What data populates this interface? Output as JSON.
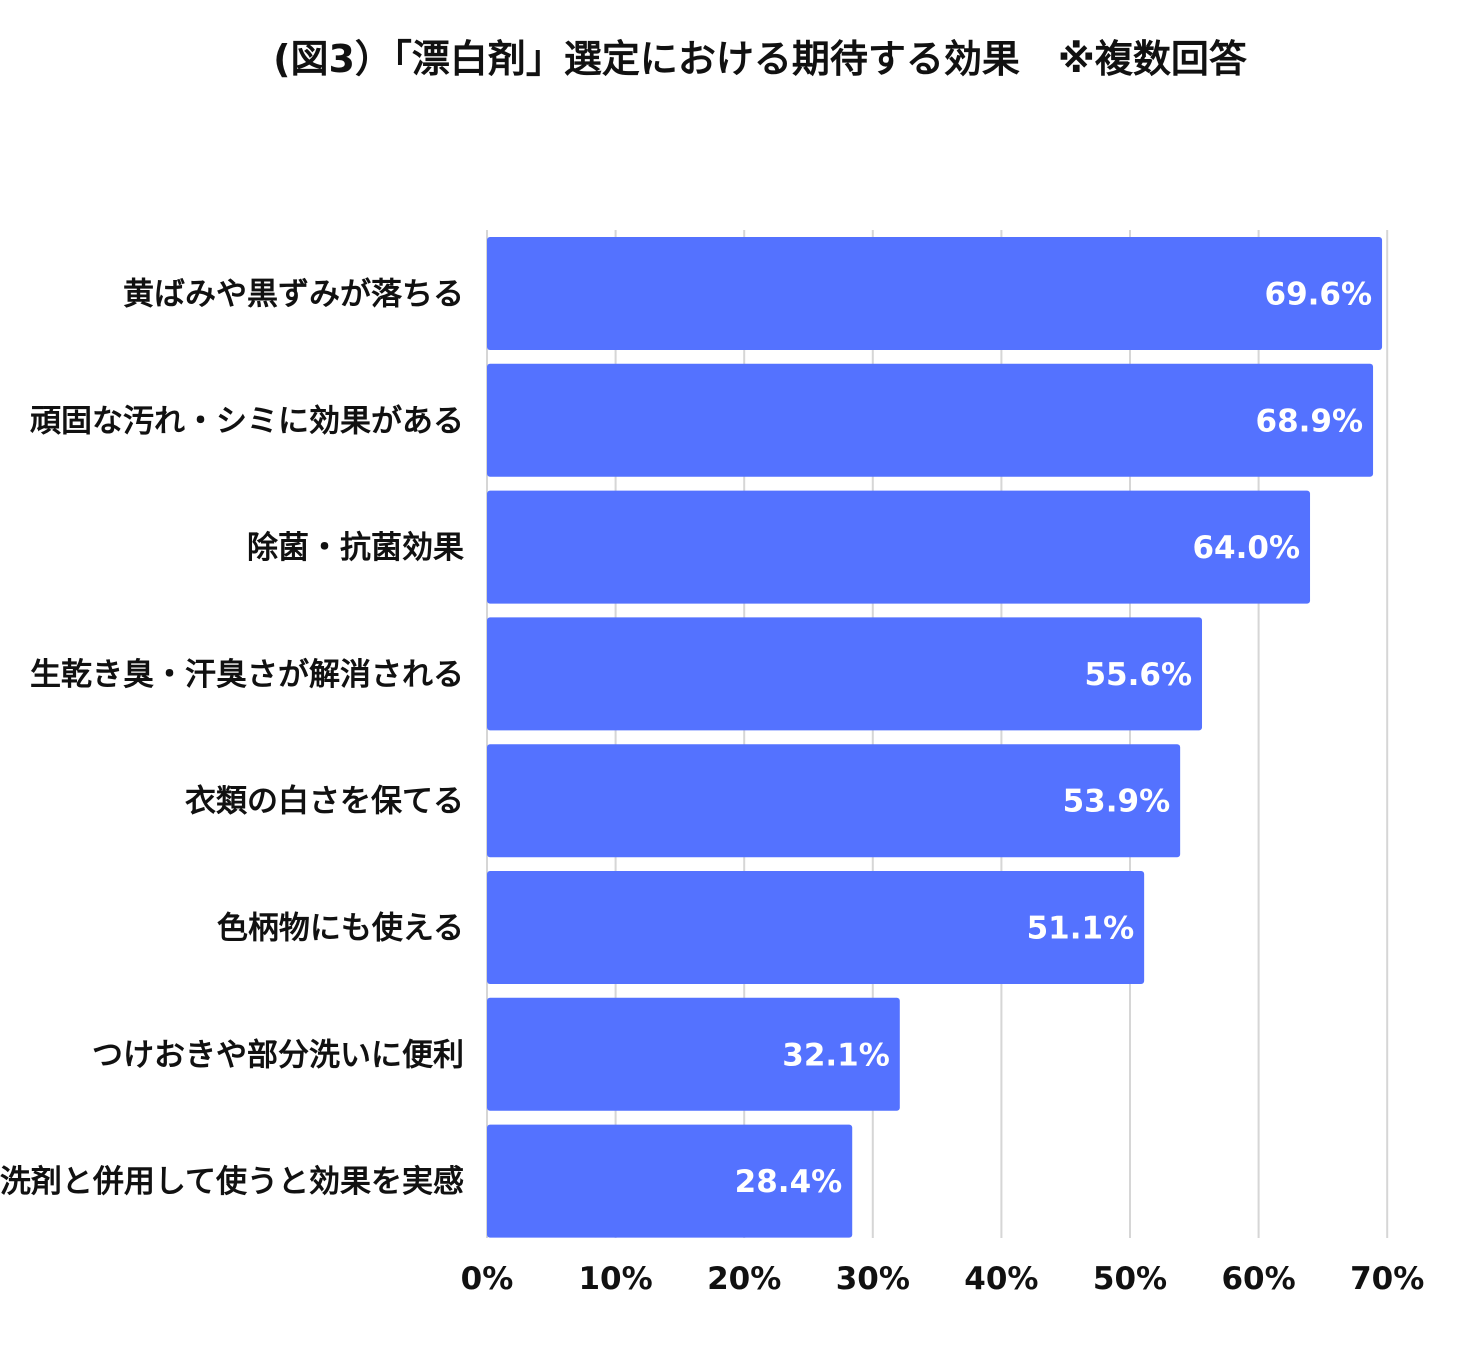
{
  "chart_data": {
    "type": "bar",
    "orientation": "horizontal",
    "title": "(図3）「漂白剤」選定における期待する効果　※複数回答",
    "categories": [
      "黄ばみや黒ずみが落ちる",
      "頑固な汚れ・シミに効果がある",
      "除菌・抗菌効果",
      "生乾き臭・汗臭さが解消される",
      "衣類の白さを保てる",
      "色柄物にも使える",
      "つけおきや部分洗いに便利",
      "洗剤と併用して使うと効果を実感"
    ],
    "values": [
      69.6,
      68.9,
      64.0,
      55.6,
      53.9,
      51.1,
      32.1,
      28.4
    ],
    "value_labels": [
      "69.6%",
      "68.9%",
      "64.0%",
      "55.6%",
      "53.9%",
      "51.1%",
      "32.1%",
      "28.4%"
    ],
    "xlim": [
      0,
      70
    ],
    "xticks": [
      0,
      10,
      20,
      30,
      40,
      50,
      60,
      70
    ],
    "xtick_labels": [
      "0%",
      "10%",
      "20%",
      "30%",
      "40%",
      "50%",
      "60%",
      "70%"
    ],
    "xlabel": "",
    "ylabel": "",
    "grid": "vertical",
    "bar_color": "#5472FF",
    "grid_color": "#D6D6D6"
  }
}
